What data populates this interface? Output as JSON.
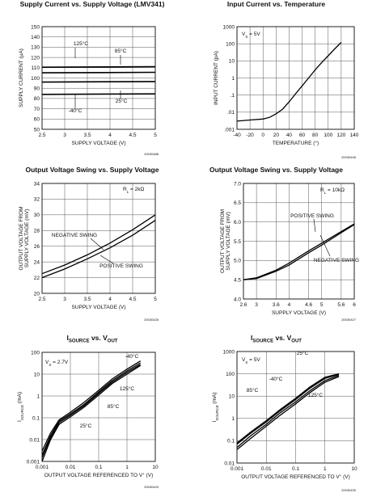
{
  "chart_data": [
    {
      "id": "c1",
      "type": "line",
      "title": "Supply Current vs. Supply Voltage (LMV341)",
      "xlabel": "SUPPLY VOLTAGE (V)",
      "ylabel": "SUPPLY CURRENT (µA)",
      "xscale": "linear",
      "yscale": "linear",
      "xlim": [
        2.5,
        5
      ],
      "ylim": [
        50,
        150
      ],
      "xticks": [
        2.5,
        3,
        3.5,
        4,
        4.5,
        5
      ],
      "xticklabels": [
        "2.5",
        "3",
        "3.5",
        "4",
        "4.5",
        "5"
      ],
      "yticks": [
        50,
        60,
        70,
        80,
        90,
        100,
        110,
        120,
        130,
        140,
        150
      ],
      "yticklabels": [
        "50",
        "60",
        "70",
        "80",
        "90",
        "100",
        "110",
        "120",
        "130",
        "140",
        "150"
      ],
      "grid": true,
      "series": [
        {
          "name": "125°C",
          "x": [
            2.5,
            5
          ],
          "y": [
            110.5,
            111
          ]
        },
        {
          "name": "85°C",
          "x": [
            2.5,
            5
          ],
          "y": [
            105,
            105.5
          ]
        },
        {
          "name": "25°C",
          "x": [
            2.5,
            5
          ],
          "y": [
            96,
            96.5
          ]
        },
        {
          "name": "-40°C",
          "x": [
            2.5,
            5
          ],
          "y": [
            84,
            84.5
          ]
        }
      ],
      "annotations": [
        {
          "text": "125°C",
          "x": 3.1,
          "y": 120
        },
        {
          "text": "85°C",
          "x": 4.35,
          "y": 116
        },
        {
          "text": "25°C",
          "x": 4.3,
          "y": 77
        },
        {
          "text": "-40°C",
          "x": 3.2,
          "y": 65
        }
      ],
      "code": "20030488"
    },
    {
      "id": "c2",
      "type": "line",
      "title": "Input Current vs. Temperature",
      "xlabel": "TEMPERATURE (°)",
      "ylabel": "INPUT CURRENT (pA)",
      "xscale": "linear",
      "yscale": "log",
      "xlim": [
        -40,
        140
      ],
      "ylim": [
        0.001,
        1000
      ],
      "xticks": [
        -40,
        -20,
        0,
        20,
        40,
        60,
        80,
        100,
        120,
        140
      ],
      "xticklabels": [
        "-40",
        "-20",
        "0",
        "20",
        "40",
        "60",
        "80",
        "100",
        "120",
        "140"
      ],
      "yticks": [
        0.001,
        0.01,
        0.1,
        1,
        10,
        100,
        1000
      ],
      "yticklabels": [
        ".001",
        ".01",
        ".1",
        "1",
        "10",
        "100",
        "1000"
      ],
      "grid": true,
      "series": [
        {
          "name": "",
          "x": [
            -40,
            -20,
            0,
            10,
            20,
            30,
            40,
            50,
            60,
            70,
            80,
            90,
            100,
            110,
            120
          ],
          "y": [
            0.003,
            0.0035,
            0.004,
            0.005,
            0.008,
            0.015,
            0.04,
            0.12,
            0.35,
            1,
            3,
            8,
            20,
            50,
            120
          ]
        }
      ],
      "annotations": [
        {
          "text": "VS = 5V"
        }
      ],
      "code": "20030446"
    },
    {
      "id": "c3",
      "type": "line",
      "title": "Output Voltage Swing vs. Supply Voltage",
      "xlabel": "SUPPLY VOLTAGE (V)",
      "ylabel": "OUTPUT VOLTAGE FROM SUPPLY VOLTAGE (mV)",
      "xscale": "linear",
      "yscale": "linear",
      "xlim": [
        2.5,
        5
      ],
      "ylim": [
        20,
        34
      ],
      "xticks": [
        2.5,
        3,
        3.5,
        4,
        4.5,
        5
      ],
      "xticklabels": [
        "2.5",
        "3",
        "3.5",
        "4",
        "4.5",
        "5"
      ],
      "yticks": [
        20,
        22,
        24,
        26,
        28,
        30,
        32,
        34
      ],
      "yticklabels": [
        "20",
        "22",
        "24",
        "26",
        "28",
        "30",
        "32",
        "34"
      ],
      "grid": true,
      "series": [
        {
          "name": "NEGATIVE SWING",
          "x": [
            2.5,
            3,
            3.5,
            4,
            4.5,
            5
          ],
          "y": [
            22.5,
            23.6,
            24.9,
            26.4,
            28.1,
            30
          ]
        },
        {
          "name": "POSITIVE SWING",
          "x": [
            2.5,
            3,
            3.5,
            4,
            4.5,
            5
          ],
          "y": [
            22,
            23.1,
            24.4,
            25.8,
            27.4,
            29.3
          ]
        }
      ],
      "annotations": [
        {
          "text": "RL = 2kΩ"
        }
      ],
      "code": "20030426"
    },
    {
      "id": "c4",
      "type": "line",
      "title": "Output Voltage Swing vs. Supply Voltage",
      "xlabel": "SUPPLY VOLTAGE (V)",
      "ylabel": "OUTPUT VOLTAGE FROM SUPPLY VOLTAGE (mV)",
      "xscale": "linear",
      "yscale": "linear",
      "xlim": [
        2.6,
        6
      ],
      "ylim": [
        4,
        7
      ],
      "xticks": [
        2.6,
        3,
        3.6,
        4,
        4.6,
        5,
        5.6,
        6
      ],
      "xticklabels": [
        "2.6",
        "3",
        "3.6",
        "4",
        "4.6",
        "5",
        "5.6",
        "6"
      ],
      "yticks": [
        4,
        4.5,
        5,
        5.5,
        6,
        6.5,
        7
      ],
      "yticklabels": [
        "4.0",
        "4.5",
        "5.0",
        "5.5",
        "6.0",
        "6.5",
        "7.0"
      ],
      "grid": true,
      "series": [
        {
          "name": "POSITIVE SWING",
          "x": [
            2.6,
            3,
            3.6,
            4,
            4.6,
            5,
            5.6,
            6
          ],
          "y": [
            4.5,
            4.55,
            4.75,
            4.93,
            5.25,
            5.45,
            5.75,
            5.95
          ]
        },
        {
          "name": "NEGATIVE SWING",
          "x": [
            2.6,
            3,
            3.6,
            4,
            4.6,
            5,
            5.6,
            6
          ],
          "y": [
            4.5,
            4.53,
            4.72,
            4.88,
            5.2,
            5.4,
            5.72,
            5.93
          ]
        }
      ],
      "annotations": [
        {
          "text": "RL = 10kΩ"
        }
      ],
      "code": "20030427"
    },
    {
      "id": "c5",
      "type": "line",
      "title": "ISOURCE vs. VOUT",
      "xlabel": "OUTPUT VOLTAGE REFERENCED TO V+ (V)",
      "ylabel": "ISOURCE (mA)",
      "xscale": "log",
      "yscale": "log",
      "xlim": [
        0.001,
        10
      ],
      "ylim": [
        0.001,
        100
      ],
      "xticks": [
        0.001,
        0.01,
        0.1,
        1,
        10
      ],
      "xticklabels": [
        "0.001",
        "0.01",
        "0.1",
        "1",
        "10"
      ],
      "yticks": [
        0.001,
        0.01,
        0.1,
        1,
        10,
        100
      ],
      "yticklabels": [
        "0.001",
        "0.01",
        "0.1",
        "1",
        "10",
        "100"
      ],
      "grid": true,
      "series": [
        {
          "name": "-40°C",
          "x": [
            0.001,
            0.002,
            0.004,
            0.01,
            0.03,
            0.1,
            0.3,
            1,
            3
          ],
          "y": [
            0.003,
            0.02,
            0.08,
            0.18,
            0.5,
            1.8,
            6,
            17,
            40
          ]
        },
        {
          "name": "25°C",
          "x": [
            0.001,
            0.002,
            0.004,
            0.01,
            0.03,
            0.1,
            0.3,
            1,
            3
          ],
          "y": [
            0.002,
            0.015,
            0.07,
            0.15,
            0.4,
            1.5,
            5,
            14,
            33
          ]
        },
        {
          "name": "85°C",
          "x": [
            0.001,
            0.002,
            0.004,
            0.01,
            0.03,
            0.1,
            0.3,
            1,
            3
          ],
          "y": [
            0.0015,
            0.012,
            0.06,
            0.13,
            0.35,
            1.3,
            4.3,
            12,
            28
          ]
        },
        {
          "name": "125°C",
          "x": [
            0.001,
            0.002,
            0.004,
            0.01,
            0.03,
            0.1,
            0.3,
            1,
            3
          ],
          "y": [
            0.001,
            0.01,
            0.05,
            0.11,
            0.3,
            1.1,
            3.7,
            10,
            25
          ]
        }
      ],
      "annotations": [
        {
          "text": "VS = 2.7V"
        }
      ],
      "code": "20030429"
    },
    {
      "id": "c6",
      "type": "line",
      "title": "ISOURCE vs. VOUT",
      "xlabel": "OUTPUT VOLTAGE REFERENCED TO V+ (V)",
      "ylabel": "ISOURCE (mA)",
      "xscale": "log",
      "yscale": "log",
      "xlim": [
        0.001,
        10
      ],
      "ylim": [
        0.01,
        1000
      ],
      "xticks": [
        0.001,
        0.01,
        0.1,
        1,
        10
      ],
      "xticklabels": [
        "0.001",
        "0.01",
        "0.1",
        "1",
        "10"
      ],
      "yticks": [
        0.01,
        0.1,
        1,
        10,
        100,
        1000
      ],
      "yticklabels": [
        "0.01",
        "0.1",
        "1",
        "10",
        "100",
        "1000"
      ],
      "grid": true,
      "series": [
        {
          "name": "25°C",
          "x": [
            0.001,
            0.003,
            0.01,
            0.03,
            0.1,
            0.3,
            1,
            3
          ],
          "y": [
            0.08,
            0.25,
            0.8,
            2.5,
            8,
            25,
            70,
            100
          ]
        },
        {
          "name": "-40°C",
          "x": [
            0.001,
            0.003,
            0.01,
            0.03,
            0.1,
            0.3,
            1,
            3
          ],
          "y": [
            0.07,
            0.22,
            0.7,
            2.2,
            7,
            22,
            62,
            95
          ]
        },
        {
          "name": "85°C",
          "x": [
            0.001,
            0.003,
            0.01,
            0.03,
            0.1,
            0.3,
            1,
            3
          ],
          "y": [
            0.05,
            0.17,
            0.55,
            1.8,
            5.5,
            17,
            50,
            85
          ]
        },
        {
          "name": "125°C",
          "x": [
            0.001,
            0.003,
            0.01,
            0.03,
            0.1,
            0.3,
            1,
            3
          ],
          "y": [
            0.04,
            0.13,
            0.45,
            1.4,
            4.5,
            14,
            42,
            75
          ]
        }
      ],
      "annotations": [
        {
          "text": "VS = 5V"
        }
      ],
      "code": "20030430"
    }
  ]
}
